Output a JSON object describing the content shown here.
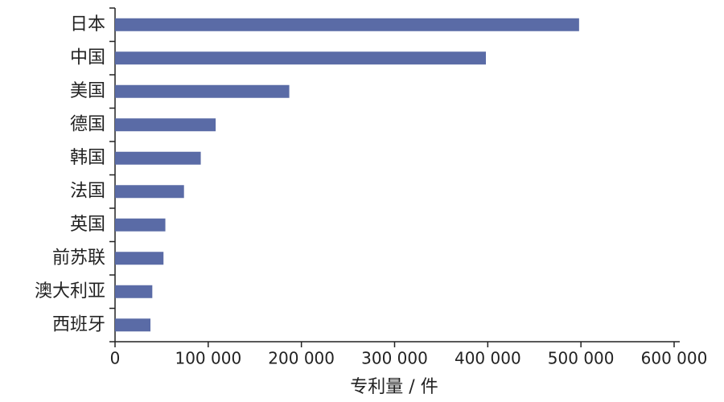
{
  "chart_data": {
    "type": "bar",
    "orientation": "horizontal",
    "x_label": "专利量 / 件",
    "categories": [
      "日本",
      "中国",
      "美国",
      "德国",
      "韩国",
      "法国",
      "英国",
      "前苏联",
      "澳大利亚",
      "西班牙"
    ],
    "values": [
      498000,
      398000,
      187000,
      108000,
      92000,
      74000,
      54000,
      52000,
      40000,
      38000
    ],
    "color": "#5a6ba6",
    "xlim": [
      0,
      600000
    ],
    "xticks": [
      0,
      {
        "value": 100000,
        "label": "100 000"
      },
      {
        "value": 200000,
        "label": "200 000"
      },
      {
        "value": 300000,
        "label": "300 000"
      },
      {
        "value": 400000,
        "label": "400 000"
      },
      {
        "value": 500000,
        "label": "500 000"
      },
      {
        "value": 600000,
        "label": "600 000"
      }
    ],
    "grid": false
  }
}
